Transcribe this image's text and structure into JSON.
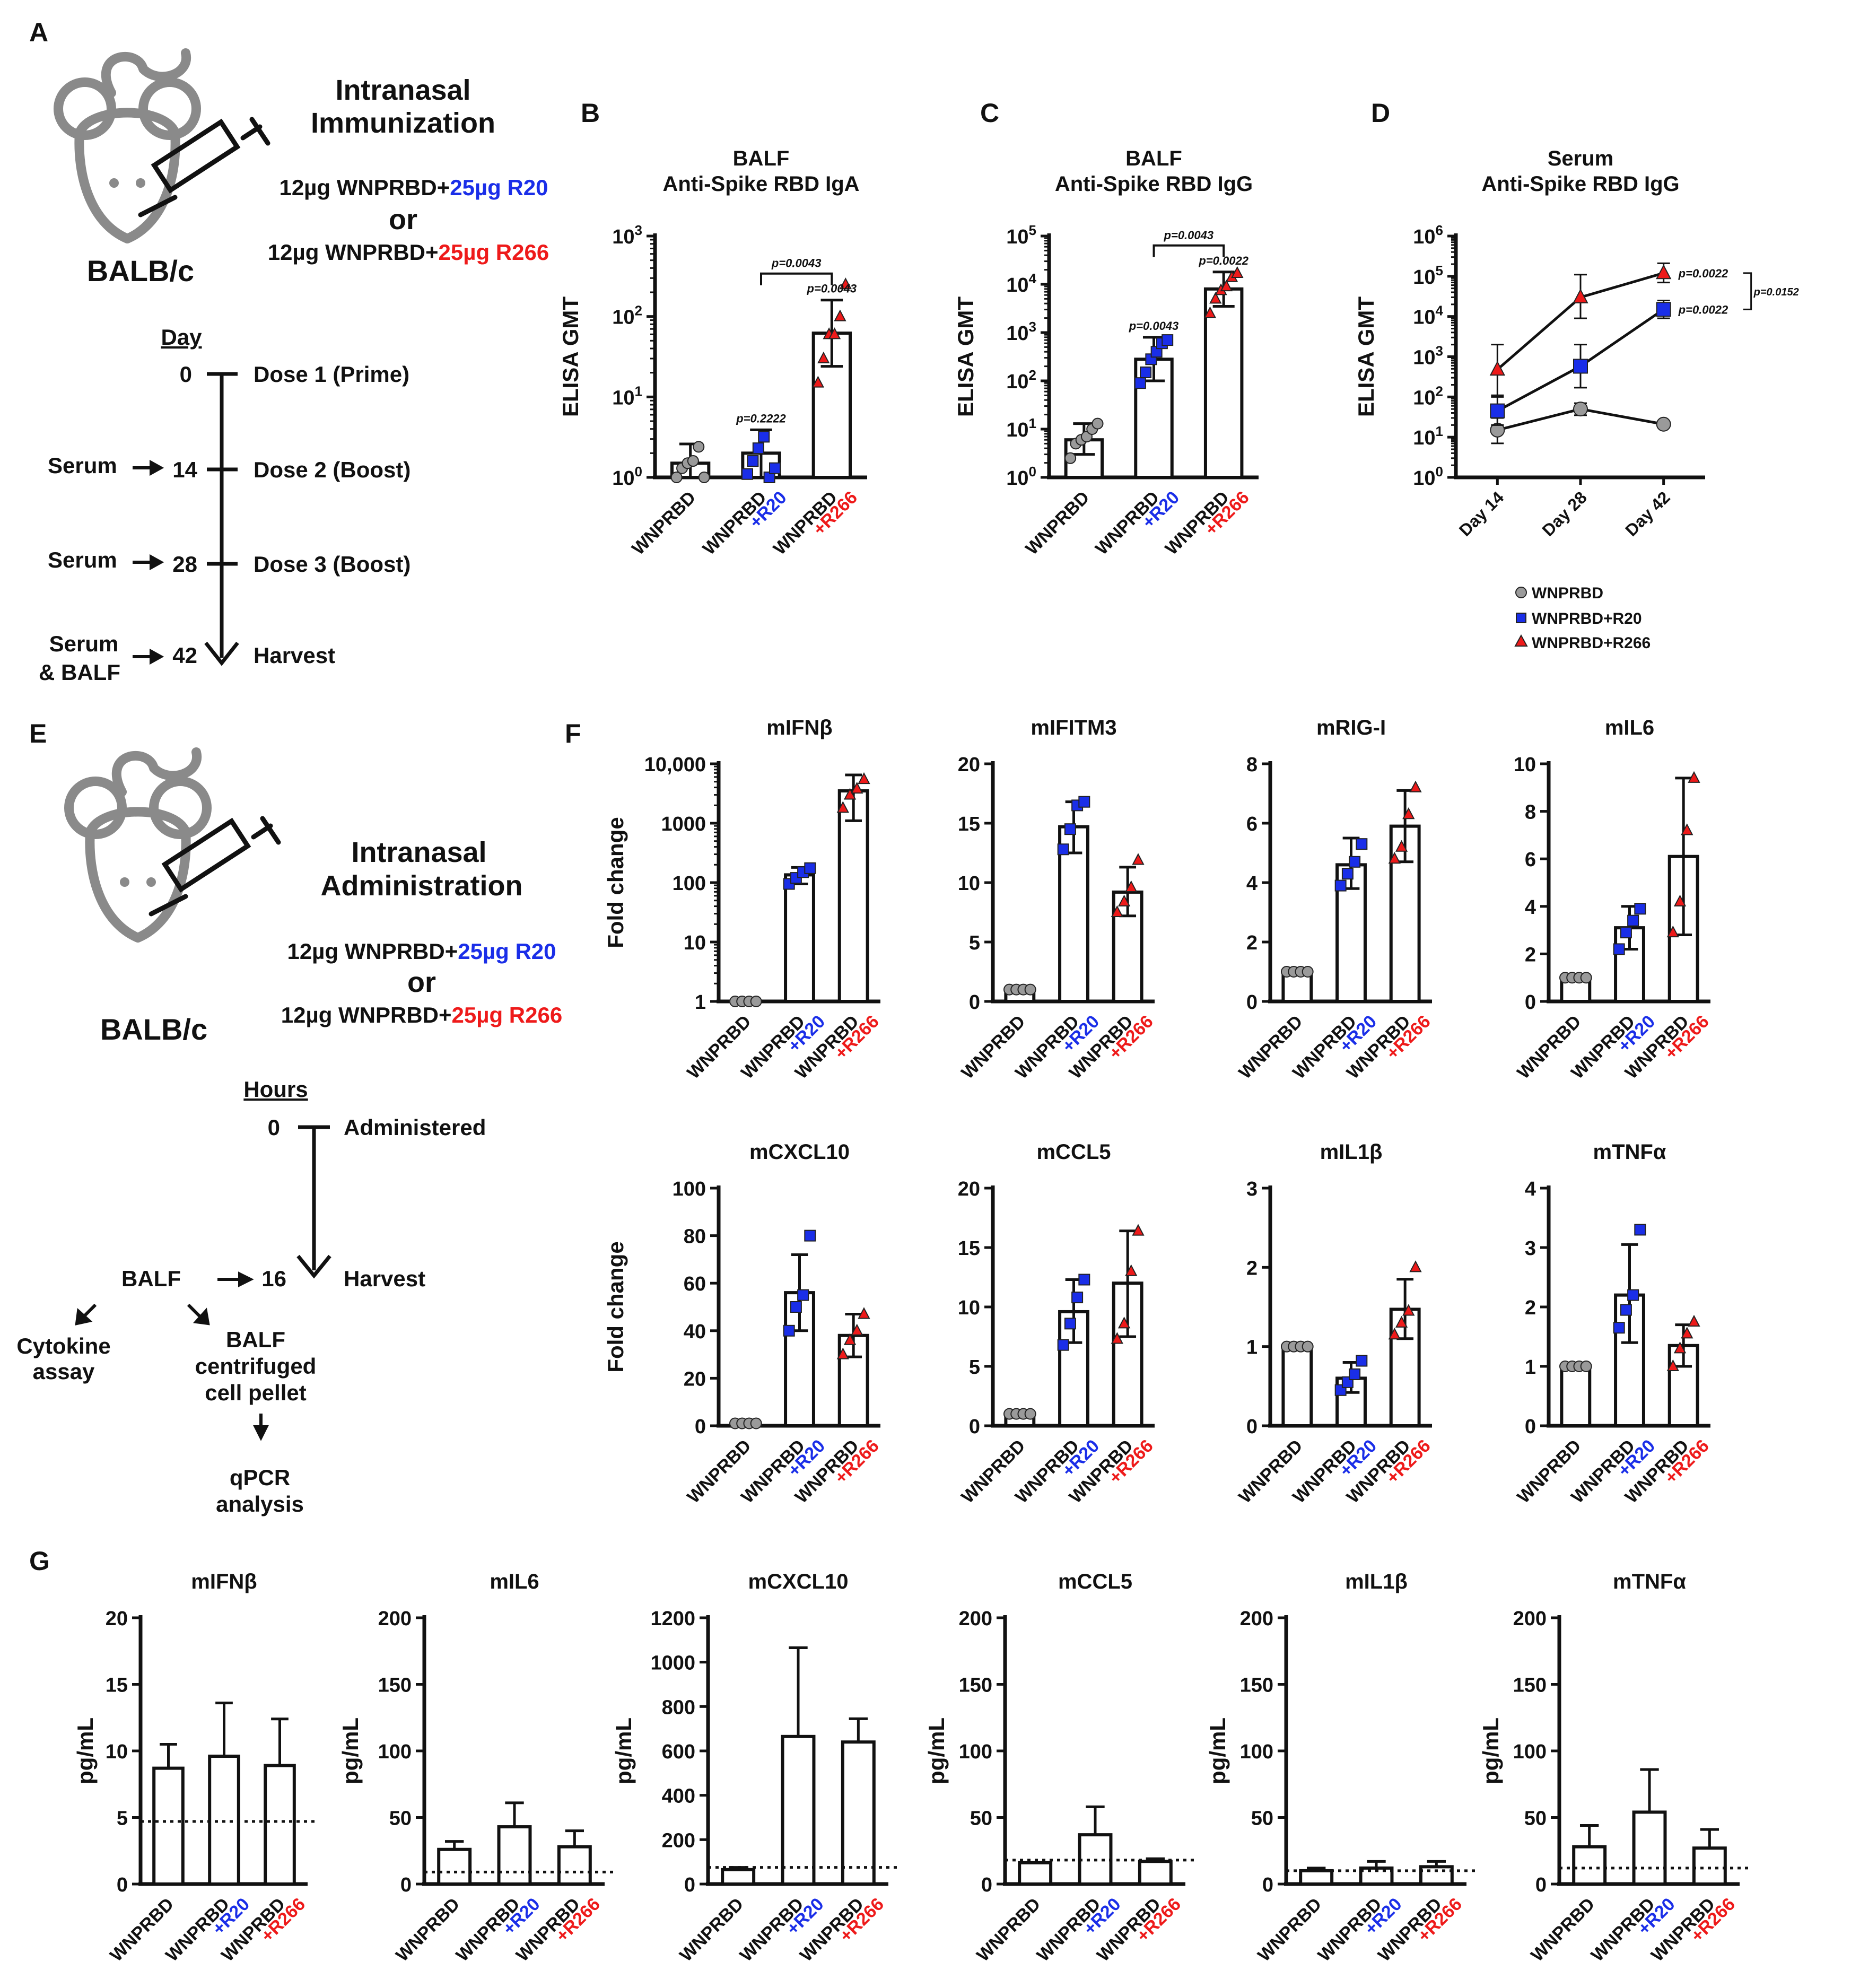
{
  "figure": {
    "panel_letters": [
      "A",
      "B",
      "C",
      "D",
      "E",
      "F",
      "G"
    ],
    "colors": {
      "blue": "#1a2ee8",
      "red": "#ee1a1a",
      "gray": "#9a9a9a",
      "black": "#111111",
      "mouse": "#8a8a8a"
    }
  },
  "panelA": {
    "title": [
      "Intranasal",
      "Immunization"
    ],
    "strain": "BALB/c",
    "dose_line1_prefix": "12µg WNPRBD+",
    "dose_line1_adj": "25µg R20",
    "or": "or",
    "dose_line2_prefix": "12µg WNPRBD+",
    "dose_line2_adj": "25µg R266",
    "timeline_header": "Day",
    "timeline": [
      {
        "day": "0",
        "label": "Dose 1 (Prime)",
        "left": ""
      },
      {
        "day": "14",
        "label": "Dose 2 (Boost)",
        "left": "Serum"
      },
      {
        "day": "28",
        "label": "Dose 3 (Boost)",
        "left": "Serum"
      },
      {
        "day": "42",
        "label": "Harvest",
        "left": "Serum"
      }
    ],
    "left_line2": "& BALF"
  },
  "panelE": {
    "title": [
      "Intranasal",
      "Administration"
    ],
    "strain": "BALB/c",
    "dose_line1_prefix": "12µg WNPRBD+",
    "dose_line1_adj": "25µg R20",
    "or": "or",
    "dose_line2_prefix": "12µg WNPRBD+",
    "dose_line2_adj": "25µg R266",
    "timeline_header": "Hours",
    "timeline": [
      {
        "t": "0",
        "label": "Administered"
      },
      {
        "t": "16",
        "label": "Harvest"
      }
    ],
    "balf": "BALF",
    "cytokine": [
      "Cytokine",
      "assay"
    ],
    "pellet": [
      "BALF",
      "centrifuged",
      "cell pellet"
    ],
    "qpcr": [
      "qPCR",
      "analysis"
    ]
  },
  "chart_data": [
    {
      "id": "B",
      "type": "bar",
      "title": [
        "BALF",
        "Anti-Spike RBD IgA"
      ],
      "ylabel": "ELISA GMT",
      "yscale": "log",
      "ylim": [
        1,
        1000
      ],
      "yticks": [
        {
          "v": 1,
          "b": "10",
          "e": "0"
        },
        {
          "v": 10,
          "b": "10",
          "e": "1"
        },
        {
          "v": 100,
          "b": "10",
          "e": "2"
        },
        {
          "v": 1000,
          "b": "10",
          "e": "3"
        }
      ],
      "categories": [
        [
          "WNPRBD"
        ],
        [
          "WNPRBD",
          "+R20"
        ],
        [
          "WNPRBD",
          "+R266"
        ]
      ],
      "values": [
        1.5,
        2.0,
        62
      ],
      "err_hi": [
        2.6,
        3.9,
        160
      ],
      "err_lo": [
        1.0,
        1.0,
        24
      ],
      "points": [
        [
          1.0,
          1.3,
          1.5,
          1.6,
          2.4,
          1.0
        ],
        [
          1.1,
          1.6,
          2.3,
          3.2,
          1.0,
          1.3
        ],
        [
          15,
          30,
          60,
          60,
          100,
          250
        ]
      ],
      "annotations": [
        {
          "bar": 1,
          "text": "p=0.2222"
        },
        {
          "bar": 2,
          "text": "p=0.0043"
        }
      ],
      "bracket": {
        "from": 1,
        "to": 2,
        "text": "p=0.0043"
      }
    },
    {
      "id": "C",
      "type": "bar",
      "title": [
        "BALF",
        "Anti-Spike RBD IgG"
      ],
      "ylabel": "ELISA GMT",
      "yscale": "log",
      "ylim": [
        1,
        100000
      ],
      "yticks": [
        {
          "v": 1,
          "b": "10",
          "e": "0"
        },
        {
          "v": 10,
          "b": "10",
          "e": "1"
        },
        {
          "v": 100,
          "b": "10",
          "e": "2"
        },
        {
          "v": 1000,
          "b": "10",
          "e": "3"
        },
        {
          "v": 10000,
          "b": "10",
          "e": "4"
        },
        {
          "v": 100000,
          "b": "10",
          "e": "5"
        }
      ],
      "categories": [
        [
          "WNPRBD"
        ],
        [
          "WNPRBD",
          "+R20"
        ],
        [
          "WNPRBD",
          "+R266"
        ]
      ],
      "values": [
        6,
        280,
        8000
      ],
      "err_hi": [
        13,
        800,
        18000
      ],
      "err_lo": [
        3,
        100,
        3500
      ],
      "points": [
        [
          2.5,
          5,
          6,
          7,
          10,
          13
        ],
        [
          90,
          150,
          280,
          400,
          600,
          700
        ],
        [
          2500,
          5000,
          7500,
          9000,
          14000,
          17000
        ]
      ],
      "annotations": [
        {
          "bar": 1,
          "text": "p=0.0043"
        },
        {
          "bar": 2,
          "text": "p=0.0022"
        }
      ],
      "bracket": {
        "from": 1,
        "to": 2,
        "text": "p=0.0043"
      }
    },
    {
      "id": "D",
      "type": "line",
      "title": [
        "Serum",
        "Anti-Spike RBD IgG"
      ],
      "ylabel": "ELISA GMT",
      "yscale": "log",
      "ylim": [
        1,
        1000000
      ],
      "yticks": [
        {
          "v": 1,
          "b": "10",
          "e": "0"
        },
        {
          "v": 10,
          "b": "10",
          "e": "1"
        },
        {
          "v": 100,
          "b": "10",
          "e": "2"
        },
        {
          "v": 1000,
          "b": "10",
          "e": "3"
        },
        {
          "v": 10000,
          "b": "10",
          "e": "4"
        },
        {
          "v": 100000,
          "b": "10",
          "e": "5"
        },
        {
          "v": 1000000,
          "b": "10",
          "e": "6"
        }
      ],
      "x": [
        "Day 14",
        "Day 28",
        "Day 42"
      ],
      "series": [
        {
          "name": "WNPRBD",
          "marker": "circle",
          "color": "#9a9a9a",
          "values": [
            15,
            50,
            21
          ],
          "err_hi": [
            30,
            70,
            null
          ],
          "err_lo": [
            7,
            35,
            null
          ]
        },
        {
          "name": "WNPRBD+R20",
          "marker": "square",
          "color": "#1a2ee8",
          "values": [
            45,
            580,
            15000
          ],
          "err_hi": [
            100,
            2000,
            25000
          ],
          "err_lo": [
            20,
            170,
            9000
          ]
        },
        {
          "name": "WNPRBD+R266",
          "marker": "triangle",
          "color": "#ee1a1a",
          "values": [
            480,
            30000,
            120000
          ],
          "err_hi": [
            2000,
            110000,
            210000
          ],
          "err_lo": [
            110,
            9000,
            70000
          ]
        }
      ],
      "annotations": [
        {
          "series": 2,
          "text": "p=0.0022"
        },
        {
          "series": 1,
          "text": "p=0.0022"
        }
      ],
      "bracket_text": "p=0.0152",
      "legend": [
        "WNPRBD",
        "WNPRBD+R20",
        "WNPRBD+R266"
      ]
    },
    {
      "id": "F1",
      "type": "bar",
      "title": [
        "mIFNβ"
      ],
      "ylabel": "Fold change",
      "yscale": "log",
      "ylim": [
        1,
        10000
      ],
      "yticks": [
        {
          "v": 1,
          "t": "1"
        },
        {
          "v": 10,
          "t": "10"
        },
        {
          "v": 100,
          "t": "100"
        },
        {
          "v": 1000,
          "t": "1000"
        },
        {
          "v": 10000,
          "t": "10,000"
        }
      ],
      "categories": [
        [
          "WNPRBD"
        ],
        [
          "WNPRBD",
          "+R20"
        ],
        [
          "WNPRBD",
          "+R266"
        ]
      ],
      "values": [
        1,
        135,
        3500
      ],
      "err_hi": [
        1,
        180,
        6500
      ],
      "err_lo": [
        1,
        95,
        1100
      ],
      "points": [
        [
          1,
          1,
          1,
          1
        ],
        [
          95,
          120,
          150,
          175
        ],
        [
          1800,
          3000,
          3800,
          5500
        ]
      ]
    },
    {
      "id": "F2",
      "type": "bar",
      "title": [
        "mIFITM3"
      ],
      "ylabel": "",
      "ylim": [
        0,
        20
      ],
      "yticks": [
        0,
        5,
        10,
        15,
        20
      ],
      "categories": [
        [
          "WNPRBD"
        ],
        [
          "WNPRBD",
          "+R20"
        ],
        [
          "WNPRBD",
          "+R266"
        ]
      ],
      "values": [
        1,
        14.7,
        9.2
      ],
      "err_hi": [
        1,
        16.8,
        11.3
      ],
      "err_lo": [
        1,
        12.5,
        7.2
      ],
      "points": [
        [
          1,
          1,
          1,
          1
        ],
        [
          12.8,
          14.5,
          16.5,
          16.8
        ],
        [
          7.5,
          8.4,
          9.6,
          11.9
        ]
      ]
    },
    {
      "id": "F3",
      "type": "bar",
      "title": [
        "mRIG-I"
      ],
      "ylabel": "",
      "ylim": [
        0,
        8
      ],
      "yticks": [
        0,
        2,
        4,
        6,
        8
      ],
      "categories": [
        [
          "WNPRBD"
        ],
        [
          "WNPRBD",
          "+R20"
        ],
        [
          "WNPRBD",
          "+R266"
        ]
      ],
      "values": [
        1,
        4.6,
        5.9
      ],
      "err_hi": [
        1,
        5.5,
        7.1
      ],
      "err_lo": [
        1,
        3.8,
        4.7
      ],
      "points": [
        [
          1,
          1,
          1,
          1
        ],
        [
          3.9,
          4.3,
          4.7,
          5.3
        ],
        [
          4.8,
          5.2,
          6.3,
          7.2
        ]
      ]
    },
    {
      "id": "F4",
      "type": "bar",
      "title": [
        "mIL6"
      ],
      "ylabel": "",
      "ylim": [
        0,
        10
      ],
      "yticks": [
        0,
        2,
        4,
        6,
        8,
        10
      ],
      "categories": [
        [
          "WNPRBD"
        ],
        [
          "WNPRBD",
          "+R20"
        ],
        [
          "WNPRBD",
          "+R266"
        ]
      ],
      "values": [
        1,
        3.1,
        6.1
      ],
      "err_hi": [
        1,
        4.0,
        9.4
      ],
      "err_lo": [
        1,
        2.2,
        2.8
      ],
      "points": [
        [
          1,
          1,
          1,
          1
        ],
        [
          2.2,
          2.9,
          3.4,
          3.9
        ],
        [
          2.9,
          4.2,
          7.2,
          9.4
        ]
      ]
    },
    {
      "id": "F5",
      "type": "bar",
      "title": [
        "mCXCL10"
      ],
      "ylabel": "Fold change",
      "ylim": [
        0,
        100
      ],
      "yticks": [
        0,
        20,
        40,
        60,
        80,
        100
      ],
      "categories": [
        [
          "WNPRBD"
        ],
        [
          "WNPRBD",
          "+R20"
        ],
        [
          "WNPRBD",
          "+R266"
        ]
      ],
      "values": [
        1,
        56,
        38
      ],
      "err_hi": [
        1,
        72,
        47
      ],
      "err_lo": [
        1,
        40,
        29
      ],
      "points": [
        [
          1,
          1,
          1,
          1
        ],
        [
          40,
          50,
          55,
          80
        ],
        [
          30,
          36,
          40,
          47
        ]
      ]
    },
    {
      "id": "F6",
      "type": "bar",
      "title": [
        "mCCL5"
      ],
      "ylabel": "",
      "ylim": [
        0,
        20
      ],
      "yticks": [
        0,
        5,
        10,
        15,
        20
      ],
      "categories": [
        [
          "WNPRBD"
        ],
        [
          "WNPRBD",
          "+R20"
        ],
        [
          "WNPRBD",
          "+R266"
        ]
      ],
      "values": [
        1,
        9.6,
        12
      ],
      "err_hi": [
        1,
        12.3,
        16.4
      ],
      "err_lo": [
        1,
        7.0,
        7.5
      ],
      "points": [
        [
          1,
          1,
          1,
          1
        ],
        [
          6.8,
          8.6,
          10.8,
          12.3
        ],
        [
          7.3,
          8.6,
          13,
          16.4
        ]
      ]
    },
    {
      "id": "F7",
      "type": "bar",
      "title": [
        "mIL1β"
      ],
      "ylabel": "",
      "ylim": [
        0,
        3
      ],
      "yticks": [
        0,
        1,
        2,
        3
      ],
      "categories": [
        [
          "WNPRBD"
        ],
        [
          "WNPRBD",
          "+R20"
        ],
        [
          "WNPRBD",
          "+R266"
        ]
      ],
      "values": [
        1,
        0.6,
        1.47
      ],
      "err_hi": [
        1,
        0.8,
        1.85
      ],
      "err_lo": [
        1,
        0.42,
        1.1
      ],
      "points": [
        [
          1,
          1,
          1,
          1
        ],
        [
          0.45,
          0.55,
          0.65,
          0.82
        ],
        [
          1.15,
          1.3,
          1.45,
          2.0
        ]
      ]
    },
    {
      "id": "F8",
      "type": "bar",
      "title": [
        "mTNFα"
      ],
      "ylabel": "",
      "ylim": [
        0,
        4
      ],
      "yticks": [
        0,
        1,
        2,
        3,
        4
      ],
      "categories": [
        [
          "WNPRBD"
        ],
        [
          "WNPRBD",
          "+R20"
        ],
        [
          "WNPRBD",
          "+R266"
        ]
      ],
      "values": [
        1,
        2.2,
        1.35
      ],
      "err_hi": [
        1,
        3.05,
        1.7
      ],
      "err_lo": [
        1,
        1.4,
        1.0
      ],
      "points": [
        [
          1,
          1,
          1,
          1
        ],
        [
          1.65,
          1.95,
          2.2,
          3.3
        ],
        [
          1.0,
          1.3,
          1.55,
          1.75
        ]
      ]
    },
    {
      "id": "G1",
      "type": "bar",
      "title": [
        "mIFNβ"
      ],
      "ylabel": "pg/mL",
      "ylim": [
        0,
        20
      ],
      "yticks": [
        0,
        5,
        10,
        15,
        20
      ],
      "categories": [
        [
          "WNPRBD"
        ],
        [
          "WNPRBD",
          "+R20"
        ],
        [
          "WNPRBD",
          "+R266"
        ]
      ],
      "values": [
        8.7,
        9.6,
        8.9
      ],
      "err_hi": [
        10.5,
        13.6,
        12.4
      ],
      "dotted": 4.7
    },
    {
      "id": "G2",
      "type": "bar",
      "title": [
        "mIL6"
      ],
      "ylabel": "pg/mL",
      "ylim": [
        0,
        200
      ],
      "yticks": [
        0,
        50,
        100,
        150,
        200
      ],
      "categories": [
        [
          "WNPRBD"
        ],
        [
          "WNPRBD",
          "+R20"
        ],
        [
          "WNPRBD",
          "+R266"
        ]
      ],
      "values": [
        26,
        43,
        28
      ],
      "err_hi": [
        32,
        61,
        40
      ],
      "dotted": 9
    },
    {
      "id": "G3",
      "type": "bar",
      "title": [
        "mCXCL10"
      ],
      "ylabel": "pg/mL",
      "ylim": [
        0,
        1200
      ],
      "yticks": [
        0,
        200,
        400,
        600,
        800,
        1000,
        1200
      ],
      "categories": [
        [
          "WNPRBD"
        ],
        [
          "WNPRBD",
          "+R20"
        ],
        [
          "WNPRBD",
          "+R266"
        ]
      ],
      "values": [
        65,
        665,
        640
      ],
      "err_hi": [
        75,
        1065,
        745
      ],
      "dotted": 75
    },
    {
      "id": "G4",
      "type": "bar",
      "title": [
        "mCCL5"
      ],
      "ylabel": "pg/mL",
      "ylim": [
        0,
        200
      ],
      "yticks": [
        0,
        50,
        100,
        150,
        200
      ],
      "categories": [
        [
          "WNPRBD"
        ],
        [
          "WNPRBD",
          "+R20"
        ],
        [
          "WNPRBD",
          "+R266"
        ]
      ],
      "values": [
        16,
        37,
        17
      ],
      "err_hi": [
        16,
        58,
        19
      ],
      "dotted": 18
    },
    {
      "id": "G5",
      "type": "bar",
      "title": [
        "mIL1β"
      ],
      "ylabel": "pg/mL",
      "ylim": [
        0,
        200
      ],
      "yticks": [
        0,
        50,
        100,
        150,
        200
      ],
      "categories": [
        [
          "WNPRBD"
        ],
        [
          "WNPRBD",
          "+R20"
        ],
        [
          "WNPRBD",
          "+R266"
        ]
      ],
      "values": [
        10,
        12,
        13
      ],
      "err_hi": [
        12,
        17,
        17
      ],
      "dotted": 10
    },
    {
      "id": "G6",
      "type": "bar",
      "title": [
        "mTNFα"
      ],
      "ylabel": "pg/mL",
      "ylim": [
        0,
        200
      ],
      "yticks": [
        0,
        50,
        100,
        150,
        200
      ],
      "categories": [
        [
          "WNPRBD"
        ],
        [
          "WNPRBD",
          "+R20"
        ],
        [
          "WNPRBD",
          "+R266"
        ]
      ],
      "values": [
        28,
        54,
        27
      ],
      "err_hi": [
        44,
        86,
        41
      ],
      "dotted": 12
    }
  ]
}
